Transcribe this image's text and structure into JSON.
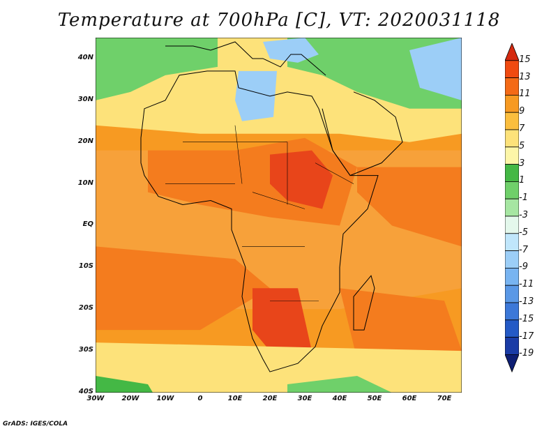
{
  "title": "Temperature at 700hPa [C], VT: 2020031118",
  "credit": "GrADS: IGES/COLA",
  "axes": {
    "y_ticks": [
      "40N",
      "30N",
      "20N",
      "10N",
      "EQ",
      "10S",
      "20S",
      "30S",
      "40S"
    ],
    "x_ticks": [
      "30W",
      "20W",
      "10W",
      "0",
      "10E",
      "20E",
      "30E",
      "40E",
      "50E",
      "60E",
      "70E"
    ]
  },
  "colorbar": {
    "labels": [
      "15",
      "13",
      "11",
      "9",
      "7",
      "5",
      "3",
      "1",
      "-1",
      "-3",
      "-5",
      "-7",
      "-9",
      "-11",
      "-13",
      "-15",
      "-17",
      "-19"
    ],
    "colors": [
      "#d52a10",
      "#f04a10",
      "#f46a16",
      "#f79a22",
      "#fbbe3e",
      "#fde27a",
      "#fdf6a8",
      "#44b845",
      "#6fd06a",
      "#a6e6a2",
      "#e4f8ec",
      "#c0e6fb",
      "#9ccef7",
      "#78b4f1",
      "#5a98e6",
      "#3c78d8",
      "#245ac6",
      "#1a3ca6",
      "#0e1f74"
    ]
  },
  "field_colors": {
    "hot": "#e8451a",
    "warm": "#f47c1e",
    "mid": "#f7a13a",
    "mild": "#fde27a",
    "cool_green": "#6fd06a",
    "green": "#44b845",
    "cold_blue": "#9ccef7",
    "colder_blue": "#78b4f1",
    "coast": "#000000"
  }
}
